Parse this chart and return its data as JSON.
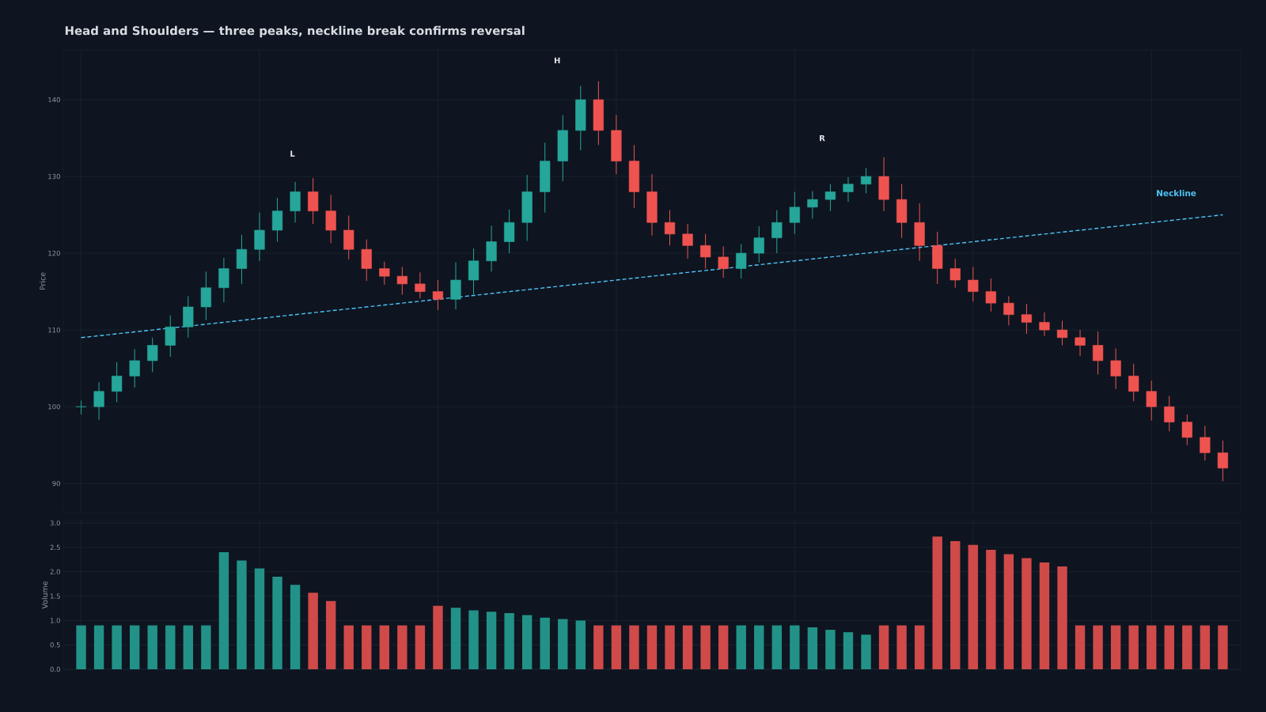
{
  "chart_data": [
    {
      "type": "candlestick",
      "title": "Head and Shoulders — three peaks, neckline break confirms reversal",
      "ylabel": "Price",
      "categories": [
        null,
        null,
        null,
        null,
        null,
        null,
        null,
        null,
        null,
        null,
        null,
        null,
        null,
        null,
        null,
        null,
        null,
        null,
        null,
        null,
        null,
        null,
        null,
        null,
        null,
        null,
        null,
        null,
        null,
        null,
        null,
        null,
        null,
        null,
        null,
        null,
        null,
        null,
        null,
        null,
        null,
        null,
        null,
        null,
        null,
        null,
        null,
        null,
        null,
        null,
        null,
        null,
        null,
        null,
        null,
        null,
        null,
        null,
        null,
        null,
        null,
        null,
        null,
        null,
        null
      ],
      "ylim": [
        86.2,
        146.5
      ],
      "yticks": [
        90,
        100,
        110,
        120,
        130,
        140
      ],
      "grid": true,
      "tick_labels": "y",
      "ohlc": [
        [
          100,
          100.8,
          99,
          100
        ],
        [
          100,
          103.2,
          98.3,
          102
        ],
        [
          102,
          105.8,
          100.6,
          104
        ],
        [
          104,
          107.5,
          102.5,
          106
        ],
        [
          106,
          109,
          104.5,
          108
        ],
        [
          108,
          111.9,
          106.5,
          110.4
        ],
        [
          110.4,
          114.4,
          109,
          113
        ],
        [
          113,
          117.6,
          111.3,
          115.5
        ],
        [
          115.5,
          119.4,
          113.6,
          118
        ],
        [
          118,
          122.4,
          116,
          120.5
        ],
        [
          120.5,
          125.3,
          119,
          123
        ],
        [
          123,
          127.2,
          121.5,
          125.5
        ],
        [
          125.5,
          129.3,
          124,
          128
        ],
        [
          128,
          129.8,
          123.8,
          125.5
        ],
        [
          125.5,
          127.6,
          121.3,
          123
        ],
        [
          123,
          124.9,
          119.2,
          120.5
        ],
        [
          120.5,
          121.8,
          116.4,
          118
        ],
        [
          118,
          118.9,
          115.9,
          117
        ],
        [
          117,
          118.2,
          114.6,
          116
        ],
        [
          116,
          117.5,
          114.1,
          115
        ],
        [
          115,
          116.5,
          112.6,
          114
        ],
        [
          114,
          118.8,
          112.7,
          116.5
        ],
        [
          116.5,
          120.6,
          114.6,
          119
        ],
        [
          119,
          123.6,
          117.6,
          121.5
        ],
        [
          121.5,
          125.7,
          120,
          124
        ],
        [
          124,
          130.2,
          121.6,
          128
        ],
        [
          128,
          134.4,
          125.3,
          132
        ],
        [
          132,
          138,
          129.4,
          136
        ],
        [
          136,
          141.8,
          133.4,
          140
        ],
        [
          140,
          142.4,
          134.1,
          136
        ],
        [
          136,
          138,
          130.3,
          132
        ],
        [
          132,
          134.1,
          125.9,
          128
        ],
        [
          128,
          130.3,
          122.3,
          124
        ],
        [
          124,
          125.6,
          121,
          122.5
        ],
        [
          122.5,
          123.8,
          119.3,
          121
        ],
        [
          121,
          122.5,
          118,
          119.5
        ],
        [
          119.5,
          120.9,
          116.8,
          118
        ],
        [
          118,
          121.2,
          116.7,
          120
        ],
        [
          120,
          123.5,
          118.8,
          122
        ],
        [
          122,
          125.6,
          120,
          124
        ],
        [
          124,
          128,
          122.5,
          126
        ],
        [
          126,
          128.1,
          124.5,
          127
        ],
        [
          127,
          129,
          125.5,
          128
        ],
        [
          128,
          129.9,
          126.7,
          129
        ],
        [
          129,
          131.1,
          127.8,
          130
        ],
        [
          130,
          132.5,
          125.5,
          127
        ],
        [
          127,
          129,
          122,
          124
        ],
        [
          124,
          126.5,
          119,
          121
        ],
        [
          121,
          122.8,
          116,
          118
        ],
        [
          118,
          119.3,
          115.5,
          116.5
        ],
        [
          116.5,
          118.2,
          113.7,
          115
        ],
        [
          115,
          116.7,
          112.4,
          113.5
        ],
        [
          113.5,
          114.4,
          110.6,
          112
        ],
        [
          112,
          113.4,
          109.5,
          111
        ],
        [
          111,
          112.3,
          109.2,
          110
        ],
        [
          110,
          111.2,
          108,
          109
        ],
        [
          109,
          110,
          106.6,
          108
        ],
        [
          108,
          109.8,
          104.2,
          106
        ],
        [
          106,
          107.6,
          102.3,
          104
        ],
        [
          104,
          105.6,
          100.7,
          102
        ],
        [
          102,
          103.4,
          98.2,
          100
        ],
        [
          100,
          101.4,
          96.8,
          98
        ],
        [
          98,
          99,
          95,
          96
        ],
        [
          96,
          97.5,
          93,
          94
        ],
        [
          94,
          95.6,
          90.3,
          92
        ]
      ],
      "colors": [
        "#26a69a",
        "#26a69a",
        "#26a69a",
        "#26a69a",
        "#26a69a",
        "#26a69a",
        "#26a69a",
        "#26a69a",
        "#26a69a",
        "#26a69a",
        "#26a69a",
        "#26a69a",
        "#26a69a",
        "#ef5350",
        "#ef5350",
        "#ef5350",
        "#ef5350",
        "#ef5350",
        "#ef5350",
        "#ef5350",
        "#ef5350",
        "#26a69a",
        "#26a69a",
        "#26a69a",
        "#26a69a",
        "#26a69a",
        "#26a69a",
        "#26a69a",
        "#26a69a",
        "#ef5350",
        "#ef5350",
        "#ef5350",
        "#ef5350",
        "#ef5350",
        "#ef5350",
        "#ef5350",
        "#ef5350",
        "#26a69a",
        "#26a69a",
        "#26a69a",
        "#26a69a",
        "#26a69a",
        "#26a69a",
        "#26a69a",
        "#26a69a",
        "#ef5350",
        "#ef5350",
        "#ef5350",
        "#ef5350",
        "#ef5350",
        "#ef5350",
        "#ef5350",
        "#ef5350",
        "#ef5350",
        "#ef5350",
        "#ef5350",
        "#ef5350",
        "#ef5350",
        "#ef5350",
        "#ef5350",
        "#ef5350",
        "#ef5350",
        "#ef5350",
        "#ef5350",
        "#ef5350"
      ],
      "series": [
        {
          "name": "Neckline",
          "type": "line",
          "color": "#4fc3f7",
          "line_style": "dashed",
          "values": [
            109,
            109.25,
            109.5,
            109.75,
            110,
            110.25,
            110.5,
            110.75,
            111,
            111.25,
            111.5,
            111.75,
            112,
            112.25,
            112.5,
            112.75,
            113,
            113.25,
            113.5,
            113.75,
            114,
            114.25,
            114.5,
            114.75,
            115,
            115.25,
            115.5,
            115.75,
            116,
            116.25,
            116.5,
            116.75,
            117,
            117.25,
            117.5,
            117.75,
            118,
            118.25,
            118.5,
            118.75,
            119,
            119.25,
            119.5,
            119.75,
            120,
            120.25,
            120.5,
            120.75,
            121,
            121.25,
            121.5,
            121.75,
            122,
            122.25,
            122.5,
            122.75,
            123,
            123.25,
            123.5,
            123.75,
            124,
            124.25,
            124.5,
            124.75,
            125
          ]
        }
      ],
      "annotations": [
        "L",
        "H",
        "R"
      ]
    },
    {
      "type": "bar",
      "ylabel": "Volume",
      "categories": [
        null,
        null,
        null,
        null,
        null,
        null,
        null,
        null,
        null,
        null,
        null,
        null,
        null,
        null,
        null,
        null,
        null,
        null,
        null,
        null,
        null,
        null,
        null,
        null,
        null,
        null,
        null,
        null,
        null,
        null,
        null,
        null,
        null,
        null,
        null,
        null,
        null,
        null,
        null,
        null,
        null,
        null,
        null,
        null,
        null,
        null,
        null,
        null,
        null,
        null,
        null,
        null,
        null,
        null,
        null,
        null,
        null,
        null,
        null,
        null,
        null,
        null,
        null,
        null,
        null
      ],
      "ylim": [
        0,
        3.05
      ],
      "yticks": [
        {
          "value": 0,
          "label": "0.0"
        },
        {
          "value": 0.5,
          "label": "0.5"
        },
        {
          "value": 1,
          "label": "1.0"
        },
        {
          "value": 1.5,
          "label": "1.5"
        },
        {
          "value": 2,
          "label": "2.0"
        },
        {
          "value": 2.5,
          "label": "2.5"
        },
        {
          "value": 3,
          "label": "3.0"
        }
      ],
      "grid": true,
      "tick_labels": "y",
      "values": [
        0.9,
        0.9,
        0.9,
        0.9,
        0.9,
        0.9,
        0.9,
        0.9,
        2.4,
        2.23,
        2.07,
        1.9,
        1.73,
        1.57,
        1.4,
        0.9,
        0.9,
        0.9,
        0.9,
        0.9,
        1.3,
        1.26,
        1.21,
        1.18,
        1.15,
        1.11,
        1.06,
        1.03,
        1.0,
        0.9,
        0.9,
        0.9,
        0.9,
        0.9,
        0.9,
        0.9,
        0.9,
        0.9,
        0.9,
        0.9,
        0.9,
        0.86,
        0.81,
        0.76,
        0.71,
        0.9,
        0.9,
        0.9,
        2.72,
        2.63,
        2.55,
        2.45,
        2.36,
        2.28,
        2.19,
        2.11,
        0.9,
        0.9,
        0.9,
        0.9,
        0.9,
        0.9,
        0.9,
        0.9,
        0.9
      ],
      "colors": [
        "#229288",
        "#229288",
        "#229288",
        "#229288",
        "#229288",
        "#229288",
        "#229288",
        "#229288",
        "#229288",
        "#229288",
        "#229288",
        "#229288",
        "#229288",
        "#cf4a49",
        "#cf4a49",
        "#cf4a49",
        "#cf4a49",
        "#cf4a49",
        "#cf4a49",
        "#cf4a49",
        "#cf4a49",
        "#229288",
        "#229288",
        "#229288",
        "#229288",
        "#229288",
        "#229288",
        "#229288",
        "#229288",
        "#cf4a49",
        "#cf4a49",
        "#cf4a49",
        "#cf4a49",
        "#cf4a49",
        "#cf4a49",
        "#cf4a49",
        "#cf4a49",
        "#229288",
        "#229288",
        "#229288",
        "#229288",
        "#229288",
        "#229288",
        "#229288",
        "#229288",
        "#cf4a49",
        "#cf4a49",
        "#cf4a49",
        "#cf4a49",
        "#cf4a49",
        "#cf4a49",
        "#cf4a49",
        "#cf4a49",
        "#cf4a49",
        "#cf4a49",
        "#cf4a49",
        "#cf4a49",
        "#cf4a49",
        "#cf4a49",
        "#cf4a49",
        "#cf4a49",
        "#cf4a49",
        "#cf4a49",
        "#cf4a49",
        "#cf4a49"
      ]
    }
  ]
}
